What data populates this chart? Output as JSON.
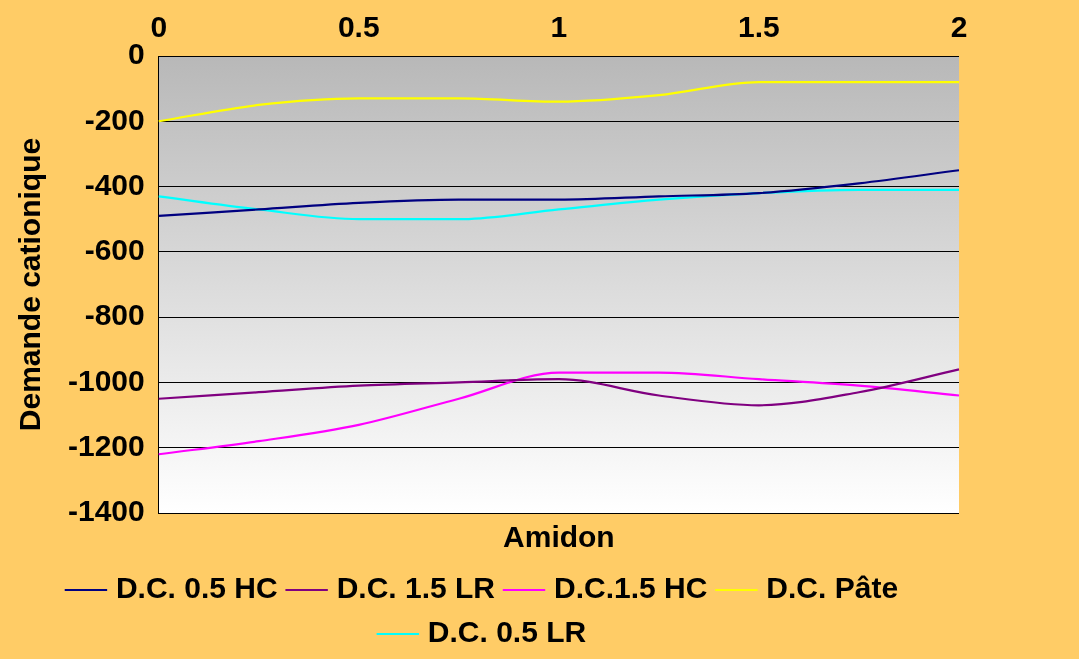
{
  "chart_data": {
    "type": "line",
    "xlabel": "Amidon",
    "ylabel": "Demande cationique",
    "x": [
      0,
      0.25,
      0.5,
      0.75,
      1,
      1.25,
      1.5,
      1.75,
      2
    ],
    "series": [
      {
        "name": "D.C. 0.5 HC",
        "color": "#000080",
        "values": [
          -490,
          -470,
          -450,
          -440,
          -440,
          -430,
          -420,
          -390,
          -350
        ]
      },
      {
        "name": "D.C. 1.5 LR",
        "color": "#800080",
        "values": [
          -1050,
          -1030,
          -1010,
          -1000,
          -990,
          -1040,
          -1070,
          -1030,
          -960
        ]
      },
      {
        "name": "D.C.1.5 HC",
        "color": "#ff00ff",
        "values": [
          -1220,
          -1180,
          -1130,
          -1050,
          -970,
          -970,
          -990,
          -1010,
          -1040
        ]
      },
      {
        "name": "D.C. Pâte",
        "color": "#ffff00",
        "values": [
          -200,
          -150,
          -130,
          -130,
          -140,
          -120,
          -80,
          -80,
          -80
        ]
      },
      {
        "name": "D.C. 0.5 LR",
        "color": "#00ffff",
        "values": [
          -430,
          -470,
          -500,
          -500,
          -470,
          -440,
          -420,
          -410,
          -410
        ]
      }
    ],
    "xlim": [
      0,
      2
    ],
    "xticks": [
      0,
      0.5,
      1,
      1.5,
      2
    ],
    "ylim": [
      -1400,
      0
    ],
    "yticks": [
      -1400,
      -1200,
      -1000,
      -800,
      -600,
      -400,
      -200,
      0
    ],
    "grid": "y",
    "legend": "bottom",
    "marker": "none",
    "line_style": "solid"
  }
}
